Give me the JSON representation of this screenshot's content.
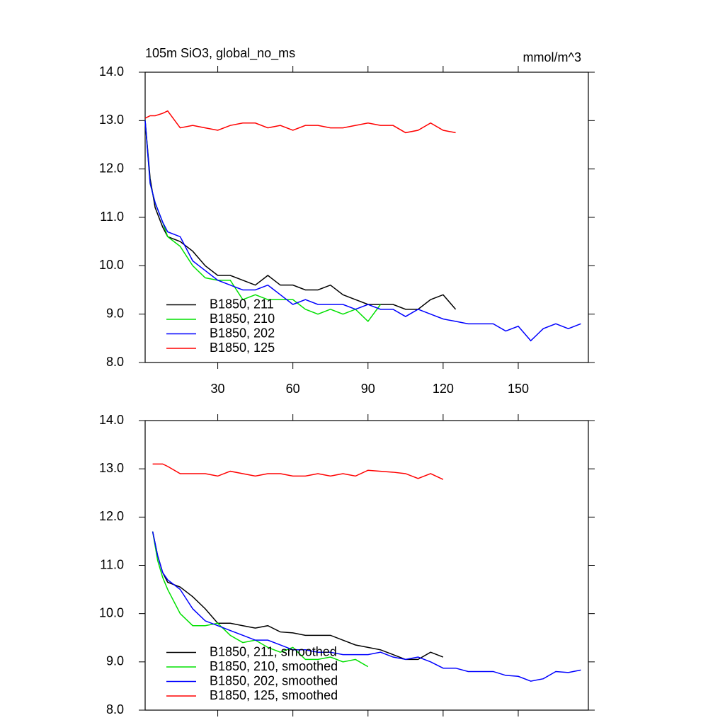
{
  "chart_data": [
    {
      "type": "line",
      "title": "105m SiO3, global_no_ms",
      "units": "mmol/m^3",
      "x": [
        1,
        3,
        5,
        8,
        10,
        15,
        20,
        25,
        30,
        35,
        40,
        45,
        50,
        55,
        60,
        65,
        70,
        75,
        80,
        85,
        90,
        95,
        100,
        105,
        110,
        115,
        120,
        125,
        130,
        135,
        140,
        145,
        150,
        155,
        160,
        165,
        170,
        175
      ],
      "series": [
        {
          "name": "B1850, 211",
          "color": "#000000",
          "values": [
            13.0,
            11.8,
            11.2,
            10.8,
            10.6,
            10.5,
            10.3,
            10.0,
            9.8,
            9.8,
            9.7,
            9.6,
            9.8,
            9.6,
            9.6,
            9.5,
            9.5,
            9.6,
            9.4,
            9.3,
            9.2,
            9.2,
            9.2,
            9.1,
            9.1,
            9.3,
            9.4,
            9.1,
            null,
            null,
            null,
            null,
            null,
            null,
            null,
            null,
            null,
            null
          ]
        },
        {
          "name": "B1850, 210",
          "color": "#00e000",
          "values": [
            13.0,
            11.7,
            11.3,
            10.9,
            10.6,
            10.4,
            10.0,
            9.75,
            9.7,
            9.7,
            9.3,
            9.4,
            9.3,
            9.3,
            9.3,
            9.1,
            9.0,
            9.1,
            9.0,
            9.1,
            8.85,
            9.2,
            null,
            null,
            null,
            null,
            null,
            null,
            null,
            null,
            null,
            null,
            null,
            null,
            null,
            null,
            null,
            null
          ]
        },
        {
          "name": "B1850, 202",
          "color": "#0000ff",
          "values": [
            13.0,
            11.7,
            11.3,
            10.9,
            10.7,
            10.6,
            10.1,
            9.9,
            9.7,
            9.6,
            9.5,
            9.5,
            9.6,
            9.4,
            9.2,
            9.3,
            9.2,
            9.2,
            9.2,
            9.1,
            9.2,
            9.1,
            9.1,
            8.95,
            9.1,
            9.0,
            8.9,
            8.85,
            8.8,
            8.8,
            8.8,
            8.65,
            8.75,
            8.45,
            8.7,
            8.8,
            8.7,
            8.8
          ]
        },
        {
          "name": "B1850, 125",
          "color": "#ff0000",
          "values": [
            13.05,
            13.1,
            13.1,
            13.15,
            13.2,
            12.85,
            12.9,
            12.85,
            12.8,
            12.9,
            12.95,
            12.95,
            12.85,
            12.9,
            12.8,
            12.9,
            12.9,
            12.85,
            12.85,
            12.9,
            12.95,
            12.9,
            12.9,
            12.75,
            12.8,
            12.95,
            12.8,
            12.75,
            null,
            null,
            null,
            null,
            null,
            null,
            null,
            null,
            null,
            null
          ]
        }
      ],
      "xlim": [
        1,
        178
      ],
      "xticks": [
        30,
        60,
        90,
        120,
        150
      ],
      "show_xtick_labels": true,
      "ylim": [
        8,
        14
      ],
      "yticks": [
        {
          "value": 8,
          "label": "8.0"
        },
        {
          "value": 9,
          "label": "9.0"
        },
        {
          "value": 10,
          "label": "10.0"
        },
        {
          "value": 11,
          "label": "11.0"
        },
        {
          "value": 12,
          "label": "12.0"
        },
        {
          "value": 13,
          "label": "13.0"
        },
        {
          "value": 14,
          "label": "14.0"
        }
      ],
      "legend_position": "lower left"
    },
    {
      "type": "line",
      "x": [
        4,
        6,
        8,
        10,
        15,
        20,
        25,
        30,
        35,
        40,
        45,
        50,
        55,
        60,
        65,
        70,
        75,
        80,
        85,
        90,
        95,
        100,
        105,
        110,
        115,
        120,
        125,
        130,
        135,
        140,
        145,
        150,
        155,
        160,
        165,
        170,
        175
      ],
      "series": [
        {
          "name": "B1850, 211, smoothed",
          "color": "#000000",
          "values": [
            11.7,
            11.2,
            10.85,
            10.65,
            10.55,
            10.35,
            10.1,
            9.8,
            9.8,
            9.75,
            9.7,
            9.75,
            9.62,
            9.6,
            9.55,
            9.55,
            9.55,
            9.45,
            9.35,
            9.3,
            9.25,
            9.15,
            9.05,
            9.05,
            9.2,
            9.1,
            null,
            null,
            null,
            null,
            null,
            null,
            null,
            null,
            null,
            null,
            null
          ]
        },
        {
          "name": "B1850, 210, smoothed",
          "color": "#00e000",
          "values": [
            11.7,
            11.1,
            10.75,
            10.5,
            10.0,
            9.75,
            9.75,
            9.8,
            9.55,
            9.4,
            9.45,
            9.3,
            9.2,
            9.3,
            9.05,
            9.05,
            9.1,
            9.0,
            9.05,
            8.9,
            null,
            null,
            null,
            null,
            null,
            null,
            null,
            null,
            null,
            null,
            null,
            null,
            null,
            null,
            null,
            null,
            null
          ]
        },
        {
          "name": "B1850, 202, smoothed",
          "color": "#0000ff",
          "values": [
            11.7,
            11.2,
            10.85,
            10.7,
            10.5,
            10.1,
            9.85,
            9.75,
            9.65,
            9.55,
            9.45,
            9.45,
            9.35,
            9.25,
            9.25,
            9.2,
            9.2,
            9.15,
            9.15,
            9.15,
            9.2,
            9.1,
            9.05,
            9.1,
            9.0,
            8.87,
            8.87,
            8.8,
            8.8,
            8.8,
            8.72,
            8.7,
            8.6,
            8.65,
            8.8,
            8.78,
            8.83
          ]
        },
        {
          "name": "B1850, 125, smoothed",
          "color": "#ff0000",
          "values": [
            13.1,
            13.1,
            13.1,
            13.05,
            12.9,
            12.9,
            12.9,
            12.85,
            12.95,
            12.9,
            12.85,
            12.9,
            12.9,
            12.85,
            12.85,
            12.9,
            12.85,
            12.9,
            12.85,
            12.97,
            12.95,
            12.93,
            12.9,
            12.8,
            12.9,
            12.78,
            null,
            null,
            null,
            null,
            null,
            null,
            null,
            null,
            null,
            null,
            null
          ]
        }
      ],
      "xlim": [
        1,
        178
      ],
      "xticks": [
        30,
        60,
        90,
        120,
        150
      ],
      "show_xtick_labels": false,
      "ylim": [
        8,
        14
      ],
      "yticks": [
        {
          "value": 8,
          "label": "8.0"
        },
        {
          "value": 9,
          "label": "9.0"
        },
        {
          "value": 10,
          "label": "10.0"
        },
        {
          "value": 11,
          "label": "11.0"
        },
        {
          "value": 12,
          "label": "12.0"
        },
        {
          "value": 13,
          "label": "13.0"
        },
        {
          "value": 14,
          "label": "14.0"
        }
      ],
      "legend_position": "lower left"
    }
  ]
}
